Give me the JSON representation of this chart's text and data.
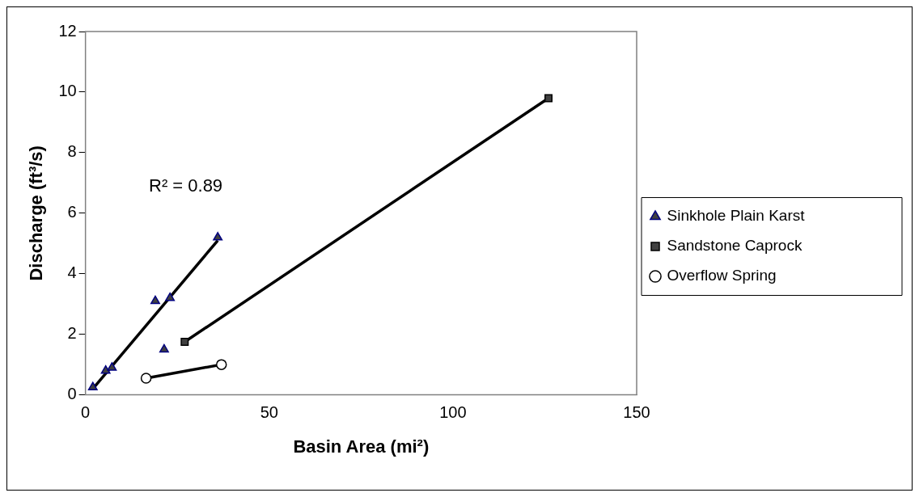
{
  "chart_data": {
    "type": "scatter",
    "xlabel": "Basin Area (mi²)",
    "ylabel": "Discharge (ft³/s)",
    "xlim": [
      0,
      150
    ],
    "xticks": [
      0,
      50,
      100,
      150
    ],
    "ylim": [
      0,
      12
    ],
    "yticks": [
      0,
      2,
      4,
      6,
      8,
      10,
      12
    ],
    "grid": false,
    "legend": "right",
    "annotations": [
      "R² = 0.89"
    ],
    "series": [
      {
        "type": "line",
        "color": "#000000",
        "marker": "none",
        "x": [
          2,
          36
        ],
        "values": [
          0.2,
          5.1
        ]
      },
      {
        "type": "line",
        "color": "#000000",
        "marker": "none",
        "x": [
          27,
          126
        ],
        "values": [
          1.75,
          9.8
        ]
      },
      {
        "type": "line",
        "color": "#000000",
        "marker": "none",
        "x": [
          16.5,
          37
        ],
        "values": [
          0.55,
          1.0
        ]
      },
      {
        "name": "Sinkhole Plain Karst",
        "color": "#000080",
        "marker": "triangle",
        "x": [
          2,
          5.5,
          7.2,
          19,
          23,
          21.4,
          36
        ],
        "values": [
          0.25,
          0.8,
          0.9,
          3.1,
          3.2,
          1.5,
          5.2
        ]
      },
      {
        "name": "Sandstone Caprock",
        "color": "#000000",
        "marker": "square",
        "x": [
          27,
          126
        ],
        "values": [
          1.75,
          9.8
        ]
      },
      {
        "name": "Overflow Spring",
        "color": "#000000",
        "marker": "circle",
        "x": [
          16.5,
          37
        ],
        "values": [
          0.55,
          1.0
        ]
      }
    ]
  }
}
